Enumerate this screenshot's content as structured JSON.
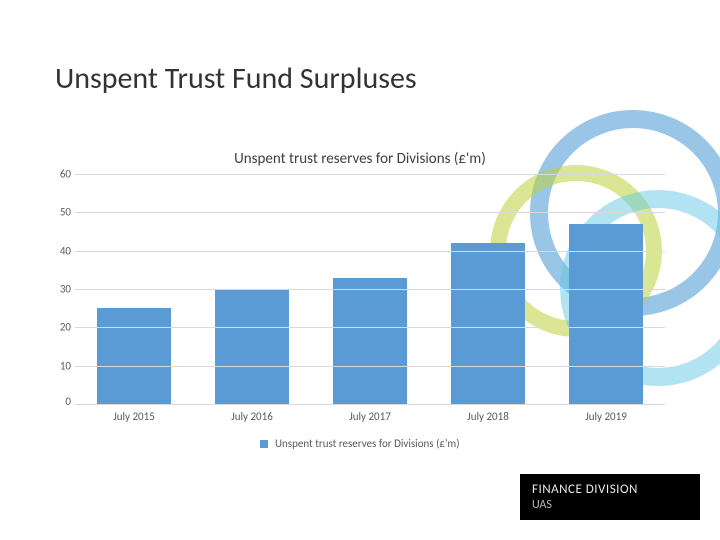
{
  "title": "Unspent Trust Fund Surpluses",
  "deco": {
    "ring_colors": {
      "blue": "#5a9bd4",
      "green": "#bfd23c",
      "teal": "#6ecbe6"
    }
  },
  "chart": {
    "type": "bar",
    "title": "Unspent trust reserves for Divisions (£'m)",
    "categories": [
      "July 2015",
      "July 2016",
      "July 2017",
      "July 2018",
      "July 2019"
    ],
    "values": [
      25,
      30,
      33,
      42,
      47
    ],
    "bar_color": "#5b9bd5",
    "ylim": [
      0,
      60
    ],
    "ytick_step": 10,
    "grid_color": "#d9d9d9",
    "axis_label_color": "#595959",
    "axis_label_fontsize": 11,
    "title_fontsize": 15,
    "bar_width": 0.62,
    "legend_label": "Unspent trust reserves for Divisions (£'m)",
    "legend_swatch_color": "#5b9bd5",
    "background_color": "#ffffff"
  },
  "footer": {
    "line1": "FINANCE DIVISION",
    "line2": "UAS",
    "bg": "#000000",
    "fg": "#ffffff"
  }
}
